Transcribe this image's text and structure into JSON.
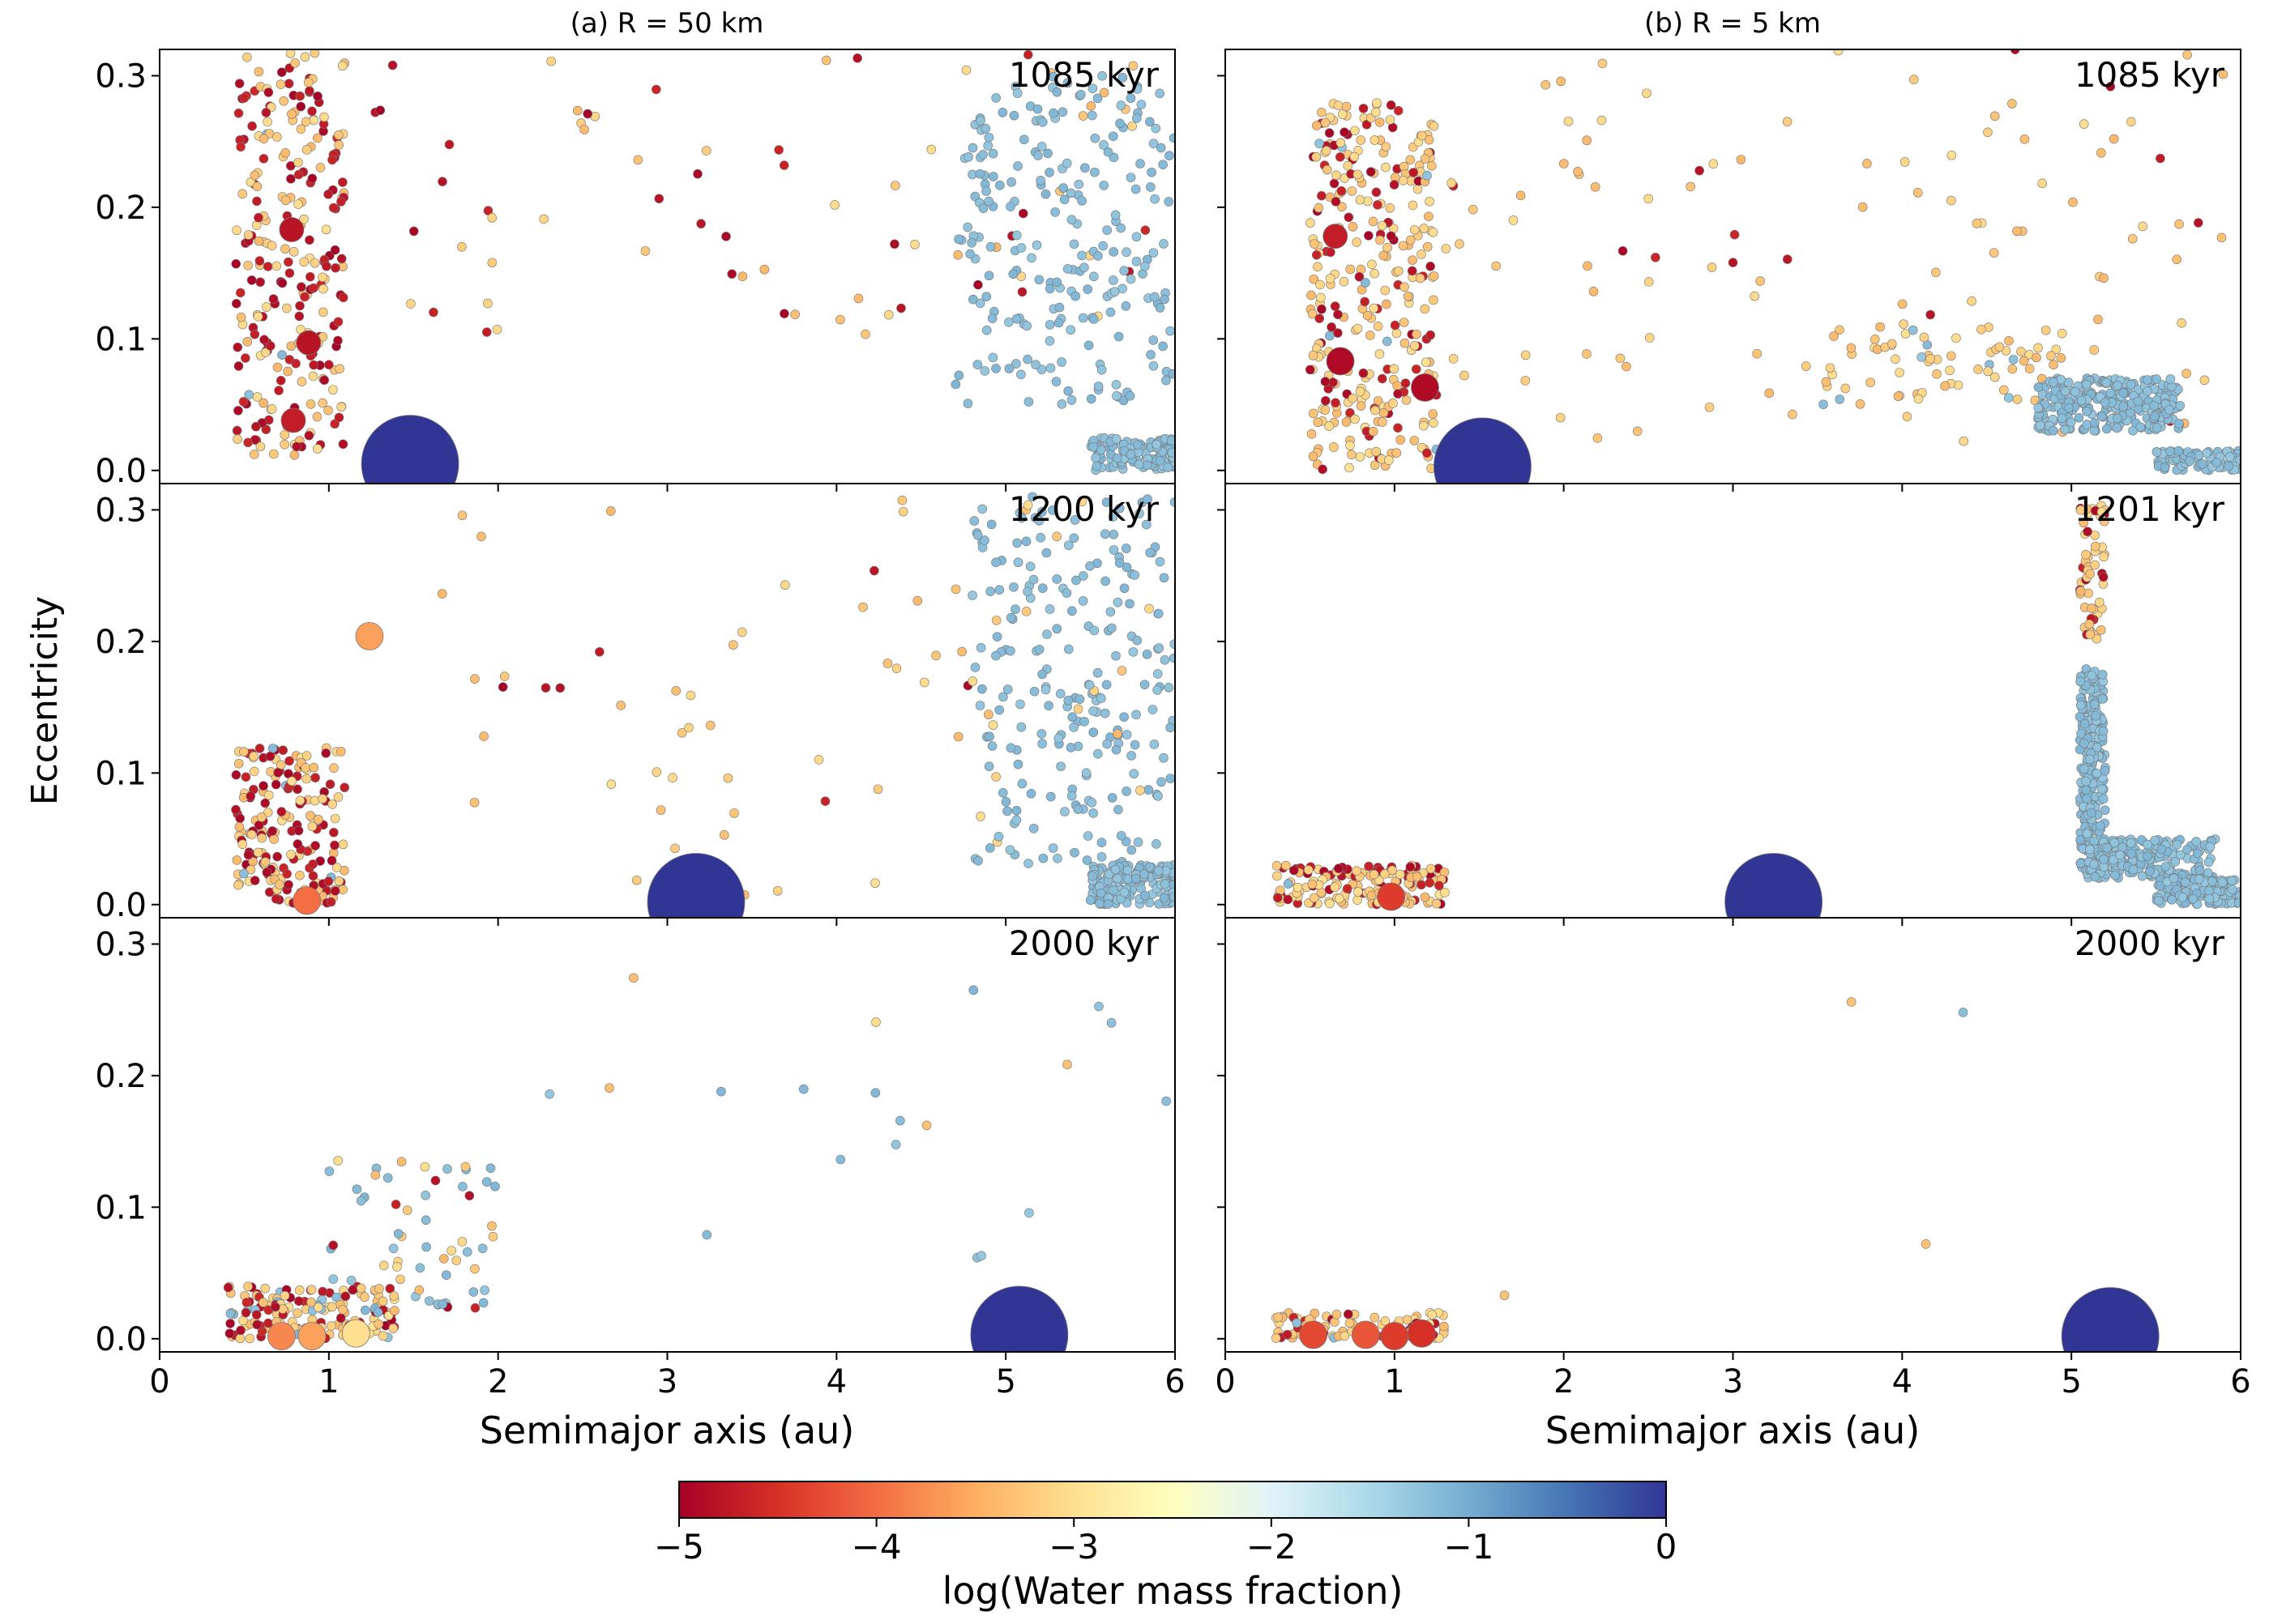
{
  "figure": {
    "ylabel": "Eccentricity",
    "xlabel": "Semimajor axis (au)",
    "column_titles": [
      "(a) R = 50 km",
      "(b) R = 5 km"
    ],
    "colorbar": {
      "label": "log(Water mass fraction)",
      "ticks": [
        "−5",
        "−4",
        "−3",
        "−2",
        "−1",
        "0"
      ],
      "range": [
        -5,
        0
      ],
      "colormap": [
        "#a50026",
        "#d73027",
        "#f46d43",
        "#fdae61",
        "#fee090",
        "#ffffbf",
        "#e0f3f8",
        "#abd9e9",
        "#74add1",
        "#4575b4",
        "#313695"
      ]
    },
    "x_ticks": [
      "0",
      "1",
      "2",
      "3",
      "4",
      "5",
      "6"
    ],
    "y_ticks": [
      "0.0",
      "0.1",
      "0.2",
      "0.3"
    ]
  },
  "chart_data": [
    {
      "type": "scatter",
      "panel": "(a) R = 50 km",
      "time_label": "1085 kyr",
      "xlim": [
        0,
        6
      ],
      "ylim": [
        -0.01,
        0.32
      ],
      "xlabel": "Semimajor axis (au)",
      "ylabel": "Eccentricity",
      "large_bodies": [
        {
          "x": 1.48,
          "y": 0.005,
          "log_wmf": 0.0,
          "size": "jupiter"
        },
        {
          "x": 0.78,
          "y": 0.183,
          "log_wmf": -4.8,
          "size": "large"
        },
        {
          "x": 0.88,
          "y": 0.097,
          "log_wmf": -4.8,
          "size": "large"
        },
        {
          "x": 0.79,
          "y": 0.038,
          "log_wmf": -4.7,
          "size": "large"
        }
      ],
      "clusters": [
        {
          "x": [
            0.45,
            1.1
          ],
          "y": [
            0.01,
            0.32
          ],
          "n": 260,
          "mix": [
            0.55,
            0.43,
            0.02
          ]
        },
        {
          "x": [
            1.1,
            5.9
          ],
          "y": [
            0.1,
            0.32
          ],
          "n": 70,
          "mix": [
            0.3,
            0.7,
            0.0
          ]
        },
        {
          "x": [
            4.7,
            6.0
          ],
          "y": [
            0.05,
            0.3
          ],
          "n": 230,
          "mix": [
            0,
            0,
            1
          ]
        },
        {
          "x": [
            5.5,
            6.0
          ],
          "y": [
            0.0,
            0.025
          ],
          "n": 110,
          "mix": [
            0,
            0,
            1
          ]
        }
      ]
    },
    {
      "type": "scatter",
      "panel": "(b) R = 5 km",
      "time_label": "1085 kyr",
      "xlim": [
        0,
        6
      ],
      "ylim": [
        -0.01,
        0.32
      ],
      "xlabel": "Semimajor axis (au)",
      "ylabel": "Eccentricity",
      "large_bodies": [
        {
          "x": 1.52,
          "y": 0.003,
          "log_wmf": 0.0,
          "size": "jupiter"
        },
        {
          "x": 0.65,
          "y": 0.178,
          "log_wmf": -4.7,
          "size": "large"
        },
        {
          "x": 0.68,
          "y": 0.083,
          "log_wmf": -4.9,
          "size": "medium"
        },
        {
          "x": 1.18,
          "y": 0.063,
          "log_wmf": -4.9,
          "size": "medium"
        }
      ],
      "clusters": [
        {
          "x": [
            0.5,
            1.25
          ],
          "y": [
            0.0,
            0.28
          ],
          "n": 320,
          "mix": [
            0.25,
            0.73,
            0.02
          ]
        },
        {
          "x": [
            1.3,
            5.9
          ],
          "y": [
            0.02,
            0.32
          ],
          "n": 110,
          "mix": [
            0.12,
            0.88,
            0
          ]
        },
        {
          "x": [
            3.5,
            5.0
          ],
          "y": [
            0.05,
            0.11
          ],
          "n": 70,
          "mix": [
            0,
            0.9,
            0.1
          ]
        },
        {
          "x": [
            4.8,
            5.65
          ],
          "y": [
            0.03,
            0.07
          ],
          "n": 280,
          "mix": [
            0,
            0,
            1
          ]
        },
        {
          "x": [
            5.5,
            6.0
          ],
          "y": [
            0.0,
            0.015
          ],
          "n": 90,
          "mix": [
            0,
            0,
            1
          ]
        }
      ]
    },
    {
      "type": "scatter",
      "panel": "(a) R = 50 km",
      "time_label": "1200 kyr",
      "xlim": [
        0,
        6
      ],
      "ylim": [
        -0.01,
        0.32
      ],
      "xlabel": "Semimajor axis (au)",
      "ylabel": "Eccentricity",
      "large_bodies": [
        {
          "x": 3.17,
          "y": 0.002,
          "log_wmf": 0.0,
          "size": "jupiter"
        },
        {
          "x": 1.24,
          "y": 0.204,
          "log_wmf": -3.6,
          "size": "medium"
        },
        {
          "x": 0.87,
          "y": 0.003,
          "log_wmf": -4.0,
          "size": "medium"
        }
      ],
      "clusters": [
        {
          "x": [
            0.45,
            1.1
          ],
          "y": [
            0.0,
            0.12
          ],
          "n": 190,
          "mix": [
            0.45,
            0.5,
            0.05
          ]
        },
        {
          "x": [
            1.5,
            5.0
          ],
          "y": [
            0.0,
            0.31
          ],
          "n": 55,
          "mix": [
            0.15,
            0.85,
            0
          ]
        },
        {
          "x": [
            4.8,
            6.0
          ],
          "y": [
            0.03,
            0.31
          ],
          "n": 240,
          "mix": [
            0,
            0.05,
            0.95
          ]
        },
        {
          "x": [
            5.5,
            6.0
          ],
          "y": [
            0.0,
            0.03
          ],
          "n": 150,
          "mix": [
            0,
            0,
            1
          ]
        }
      ]
    },
    {
      "type": "scatter",
      "panel": "(b) R = 5 km",
      "time_label": "1201 kyr",
      "xlim": [
        0,
        6
      ],
      "ylim": [
        -0.01,
        0.32
      ],
      "xlabel": "Semimajor axis (au)",
      "ylabel": "Eccentricity",
      "large_bodies": [
        {
          "x": 3.24,
          "y": 0.002,
          "log_wmf": 0.0,
          "size": "jupiter"
        },
        {
          "x": 0.98,
          "y": 0.006,
          "log_wmf": -4.4,
          "size": "medium"
        }
      ],
      "clusters": [
        {
          "x": [
            0.3,
            1.3
          ],
          "y": [
            0.0,
            0.03
          ],
          "n": 150,
          "mix": [
            0.35,
            0.62,
            0.03
          ]
        },
        {
          "x": [
            5.05,
            5.2
          ],
          "y": [
            0.2,
            0.31
          ],
          "n": 60,
          "mix": [
            0.3,
            0.7,
            0
          ]
        },
        {
          "x": [
            5.05,
            5.2
          ],
          "y": [
            0.02,
            0.18
          ],
          "n": 260,
          "mix": [
            0,
            0,
            1
          ]
        },
        {
          "x": [
            5.1,
            5.85
          ],
          "y": [
            0.02,
            0.05
          ],
          "n": 180,
          "mix": [
            0,
            0,
            1
          ]
        },
        {
          "x": [
            5.5,
            6.0
          ],
          "y": [
            0.0,
            0.02
          ],
          "n": 150,
          "mix": [
            0,
            0,
            1
          ]
        }
      ]
    },
    {
      "type": "scatter",
      "panel": "(a) R = 50 km",
      "time_label": "2000 kyr",
      "xlim": [
        0,
        6
      ],
      "ylim": [
        -0.01,
        0.32
      ],
      "xlabel": "Semimajor axis (au)",
      "ylabel": "Eccentricity",
      "large_bodies": [
        {
          "x": 5.08,
          "y": 0.003,
          "log_wmf": 0.0,
          "size": "jupiter"
        },
        {
          "x": 0.72,
          "y": 0.002,
          "log_wmf": -3.8,
          "size": "medium"
        },
        {
          "x": 0.9,
          "y": 0.002,
          "log_wmf": -3.6,
          "size": "medium"
        },
        {
          "x": 1.16,
          "y": 0.004,
          "log_wmf": -3.0,
          "size": "medium"
        }
      ],
      "clusters": [
        {
          "x": [
            0.4,
            1.4
          ],
          "y": [
            0.0,
            0.04
          ],
          "n": 150,
          "mix": [
            0.35,
            0.55,
            0.1
          ]
        },
        {
          "x": [
            1.0,
            2.0
          ],
          "y": [
            0.02,
            0.14
          ],
          "n": 60,
          "mix": [
            0.05,
            0.5,
            0.45
          ]
        },
        {
          "x": [
            2.0,
            6.0
          ],
          "y": [
            0.06,
            0.28
          ],
          "n": 20,
          "mix": [
            0,
            0.3,
            0.7
          ]
        }
      ]
    },
    {
      "type": "scatter",
      "panel": "(b) R = 5 km",
      "time_label": "2000 kyr",
      "xlim": [
        0,
        6
      ],
      "ylim": [
        -0.01,
        0.32
      ],
      "xlabel": "Semimajor axis (au)",
      "ylabel": "Eccentricity",
      "large_bodies": [
        {
          "x": 5.23,
          "y": 0.002,
          "log_wmf": 0.0,
          "size": "jupiter"
        },
        {
          "x": 0.52,
          "y": 0.003,
          "log_wmf": -4.3,
          "size": "medium"
        },
        {
          "x": 0.83,
          "y": 0.003,
          "log_wmf": -4.2,
          "size": "medium"
        },
        {
          "x": 1.0,
          "y": 0.002,
          "log_wmf": -4.4,
          "size": "medium"
        },
        {
          "x": 1.16,
          "y": 0.004,
          "log_wmf": -4.5,
          "size": "medium"
        }
      ],
      "clusters": [
        {
          "x": [
            0.3,
            1.3
          ],
          "y": [
            0.0,
            0.02
          ],
          "n": 90,
          "mix": [
            0.35,
            0.6,
            0.05
          ]
        }
      ],
      "points": [
        {
          "x": 1.65,
          "y": 0.033,
          "log_wmf": -3.3
        },
        {
          "x": 3.7,
          "y": 0.256,
          "log_wmf": -3.3
        },
        {
          "x": 4.14,
          "y": 0.072,
          "log_wmf": -3.3
        },
        {
          "x": 4.36,
          "y": 0.248,
          "log_wmf": -1.2
        }
      ]
    }
  ]
}
